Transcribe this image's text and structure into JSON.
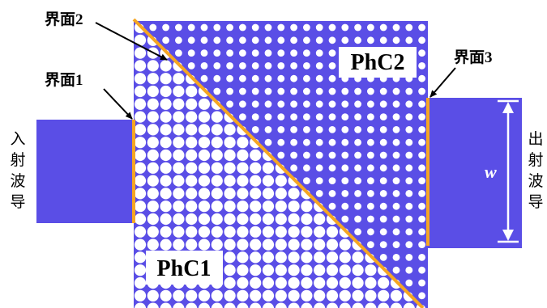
{
  "colors": {
    "crystal": "#5a4ee6",
    "hole": "#ffffff",
    "interface": "#f5a623",
    "waveguide": "#5a4ee6",
    "arrow": "#000000",
    "dimension": "#ffffff",
    "background": "#ffffff"
  },
  "labels": {
    "interface1": "界面1",
    "interface2": "界面2",
    "interface3": "界面3",
    "phc1": "PhC1",
    "phc2": "PhC2",
    "width_symbol": "w",
    "input_waveguide": [
      "入",
      "射",
      "波",
      "导"
    ],
    "output_waveguide": [
      "出",
      "射",
      "波",
      "导"
    ]
  },
  "lattice": {
    "phc1_holes": "large",
    "phc2_holes": "small"
  }
}
